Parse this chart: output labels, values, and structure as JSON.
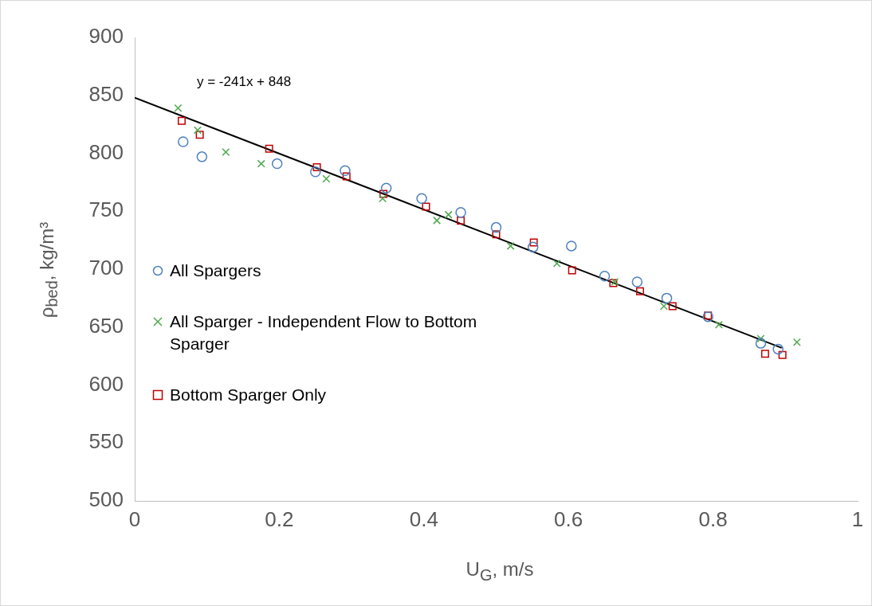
{
  "chart_data": {
    "type": "scatter",
    "xlabel": "U$_{G}$, m/s",
    "ylabel": "ρ$_{bed}$, kg/m³",
    "annotations": [
      "y = -241x + 848"
    ],
    "xlim": [
      0,
      1
    ],
    "xticks": [
      0,
      0.2,
      0.4,
      0.6,
      0.8,
      1
    ],
    "ylim": [
      500,
      900
    ],
    "yticks": [
      500,
      550,
      600,
      650,
      700,
      750,
      800,
      850,
      900
    ],
    "grid": false,
    "legend": "left",
    "series": [
      {
        "name": "All Spargers",
        "color": "#4f81bd",
        "marker": "circle",
        "x": [
          0.067,
          0.093,
          0.197,
          0.25,
          0.291,
          0.348,
          0.397,
          0.451,
          0.5,
          0.551,
          0.604,
          0.65,
          0.695,
          0.736,
          0.793,
          0.866,
          0.89
        ],
        "values": [
          810,
          797,
          791,
          784,
          785,
          770,
          761,
          749,
          736,
          719,
          720,
          694,
          689,
          675,
          659,
          636,
          631
        ]
      },
      {
        "name": "All Sparger - Independent Flow to Bottom Sparger",
        "color": "#4ea84e",
        "marker": "cross",
        "x": [
          0.06,
          0.087,
          0.126,
          0.175,
          0.265,
          0.343,
          0.418,
          0.434,
          0.52,
          0.584,
          0.664,
          0.732,
          0.808,
          0.866,
          0.916
        ],
        "values": [
          839,
          820,
          801,
          791,
          778,
          761,
          742,
          747,
          720,
          705,
          689,
          668,
          652,
          640,
          637
        ]
      },
      {
        "name": "Bottom Sparger Only",
        "color": "#c00000",
        "marker": "square",
        "x": [
          0.065,
          0.09,
          0.186,
          0.252,
          0.293,
          0.344,
          0.403,
          0.451,
          0.5,
          0.552,
          0.605,
          0.662,
          0.699,
          0.744,
          0.793,
          0.872,
          0.896
        ],
        "values": [
          828,
          816,
          804,
          788,
          780,
          765,
          754,
          742,
          730,
          723,
          699,
          688,
          681,
          668,
          660,
          627,
          626
        ]
      },
      {
        "type": "line",
        "color": "#000000",
        "marker": "none",
        "x": [
          0,
          0.895
        ],
        "values": [
          848,
          632
        ]
      }
    ]
  }
}
